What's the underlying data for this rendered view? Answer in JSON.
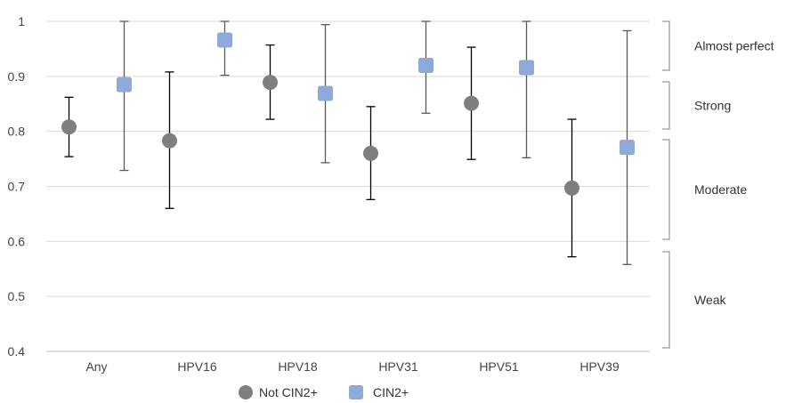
{
  "chart_data": {
    "type": "scatter",
    "title": "",
    "xlabel": "",
    "ylabel": "",
    "categories": [
      "Any",
      "HPV16",
      "HPV18",
      "HPV31",
      "HPV51",
      "HPV39"
    ],
    "ylim": [
      0.4,
      1.0
    ],
    "yticks": [
      0.4,
      0.5,
      0.6,
      0.7,
      0.8,
      0.9,
      1.0
    ],
    "ytick_labels": [
      "0.4",
      "0.5",
      "0.6",
      "0.7",
      "0.8",
      "0.9",
      "1"
    ],
    "grid": true,
    "legend_position": "bottom",
    "series": [
      {
        "name": "Not CIN2+",
        "marker": "circle",
        "color": "#7f7f7f",
        "errorbar_color": "#000000",
        "values": [
          0.808,
          0.783,
          0.889,
          0.76,
          0.851,
          0.697
        ],
        "lower": [
          0.754,
          0.66,
          0.822,
          0.676,
          0.749,
          0.572
        ],
        "upper": [
          0.862,
          0.908,
          0.957,
          0.845,
          0.953,
          0.822
        ]
      },
      {
        "name": "CIN2+",
        "marker": "square",
        "color": "#8eaadb",
        "errorbar_color": "#595959",
        "values": [
          0.885,
          0.966,
          0.869,
          0.92,
          0.916,
          0.771
        ],
        "lower": [
          0.729,
          0.902,
          0.743,
          0.833,
          0.752,
          0.558
        ],
        "upper": [
          1.0,
          1.0,
          0.994,
          1.0,
          1.0,
          0.983
        ]
      }
    ],
    "bands": [
      {
        "label": "Almost perfect",
        "from": 0.9,
        "to": 1.0
      },
      {
        "label": "Strong",
        "from": 0.8,
        "to": 0.89
      },
      {
        "label": "Moderate",
        "from": 0.6,
        "to": 0.79
      },
      {
        "label": "Weak",
        "from": 0.4,
        "to": 0.59
      }
    ]
  }
}
